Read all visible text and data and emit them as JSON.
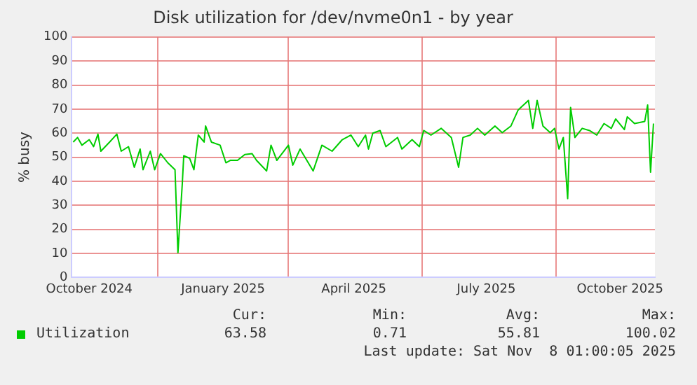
{
  "chart_data": {
    "type": "line",
    "title": "Disk utilization for /dev/nvme0n1 - by year",
    "ylabel": "% busy",
    "x": [
      "2024-10-04",
      "2024-10-07",
      "2024-10-10",
      "2024-10-15",
      "2024-10-18",
      "2024-10-21",
      "2024-10-23",
      "2024-10-29",
      "2024-11-03",
      "2024-11-06",
      "2024-11-11",
      "2024-11-15",
      "2024-11-19",
      "2024-11-21",
      "2024-11-26",
      "2024-11-29",
      "2024-12-03",
      "2024-12-08",
      "2024-12-13",
      "2024-12-15",
      "2024-12-18",
      "2024-12-19",
      "2024-12-23",
      "2024-12-26",
      "2024-12-29",
      "2025-01-02",
      "2025-01-03",
      "2025-01-07",
      "2025-01-13",
      "2025-01-17",
      "2025-01-20",
      "2025-01-25",
      "2025-01-30",
      "2025-02-04",
      "2025-02-07",
      "2025-02-14",
      "2025-02-17",
      "2025-02-21",
      "2025-03-01",
      "2025-03-04",
      "2025-03-09",
      "2025-03-18",
      "2025-03-24",
      "2025-03-31",
      "2025-04-07",
      "2025-04-13",
      "2025-04-18",
      "2025-04-23",
      "2025-04-25",
      "2025-04-28",
      "2025-05-03",
      "2025-05-07",
      "2025-05-15",
      "2025-05-18",
      "2025-05-25",
      "2025-05-30",
      "2025-06-02",
      "2025-06-07",
      "2025-06-14",
      "2025-06-21",
      "2025-06-26",
      "2025-06-29",
      "2025-07-04",
      "2025-07-09",
      "2025-07-14",
      "2025-07-21",
      "2025-07-26",
      "2025-08-01",
      "2025-08-06",
      "2025-08-13",
      "2025-08-16",
      "2025-08-19",
      "2025-08-23",
      "2025-08-28",
      "2025-08-31",
      "2025-09-03",
      "2025-09-06",
      "2025-09-09",
      "2025-09-11",
      "2025-09-14",
      "2025-09-19",
      "2025-09-24",
      "2025-09-29",
      "2025-10-04",
      "2025-10-09",
      "2025-10-12",
      "2025-10-18",
      "2025-10-20",
      "2025-10-25",
      "2025-11-01",
      "2025-11-03",
      "2025-11-05",
      "2025-11-07"
    ],
    "series": [
      {
        "name": "Utilization",
        "color": "#00cc00",
        "values": [
          56.3,
          58.2,
          55,
          57.3,
          54.4,
          59.6,
          52.5,
          56.3,
          59.6,
          52.5,
          54.4,
          45.8,
          53.4,
          44.8,
          52.5,
          44.8,
          51.5,
          47.7,
          44.8,
          10.3,
          39,
          50.6,
          49.6,
          44.8,
          59.2,
          56.3,
          63,
          56.3,
          55,
          47.7,
          48.7,
          48.7,
          51.1,
          51.5,
          48.7,
          44.3,
          55,
          48.7,
          55,
          46.7,
          53.4,
          44.3,
          55,
          52.5,
          57.3,
          59.2,
          54.4,
          59.2,
          53.4,
          60,
          61.1,
          54.4,
          58.2,
          53.4,
          57.3,
          54.4,
          61.1,
          59.2,
          62,
          58.2,
          45.8,
          58.2,
          59.2,
          62,
          59.2,
          63,
          60.2,
          63,
          69.7,
          73.6,
          62,
          73.6,
          63,
          60.2,
          62,
          53.4,
          58.2,
          32.8,
          70.7,
          58.2,
          62,
          61.1,
          59.2,
          64,
          62,
          65.9,
          61.5,
          66.8,
          64,
          64.9,
          71.7,
          43.8,
          64
        ]
      }
    ],
    "xlim": [
      "2024-10-03",
      "2025-11-08"
    ],
    "xticks": [
      {
        "value": "2024-10-15",
        "label": "October 2024"
      },
      {
        "value": "2024-12-01",
        "label": null
      },
      {
        "value": "2025-01-15",
        "label": "January 2025"
      },
      {
        "value": "2025-03-01",
        "label": null
      },
      {
        "value": "2025-04-15",
        "label": "April 2025"
      },
      {
        "value": "2025-06-01",
        "label": null
      },
      {
        "value": "2025-07-15",
        "label": "July 2025"
      },
      {
        "value": "2025-09-01",
        "label": null
      },
      {
        "value": "2025-10-15",
        "label": "October 2025"
      }
    ],
    "ylim": [
      0,
      100
    ],
    "yticks": [
      0,
      10,
      20,
      30,
      40,
      50,
      60,
      70,
      80,
      90,
      100
    ],
    "grid": true,
    "legend": "bottom left",
    "annotations": [
      "Cur:",
      "Min:",
      "Avg:",
      "Max:",
      "63.58",
      "0.71",
      "55.81",
      "100.02",
      "Last update: Sat Nov  8 01:00:05 2025"
    ]
  }
}
